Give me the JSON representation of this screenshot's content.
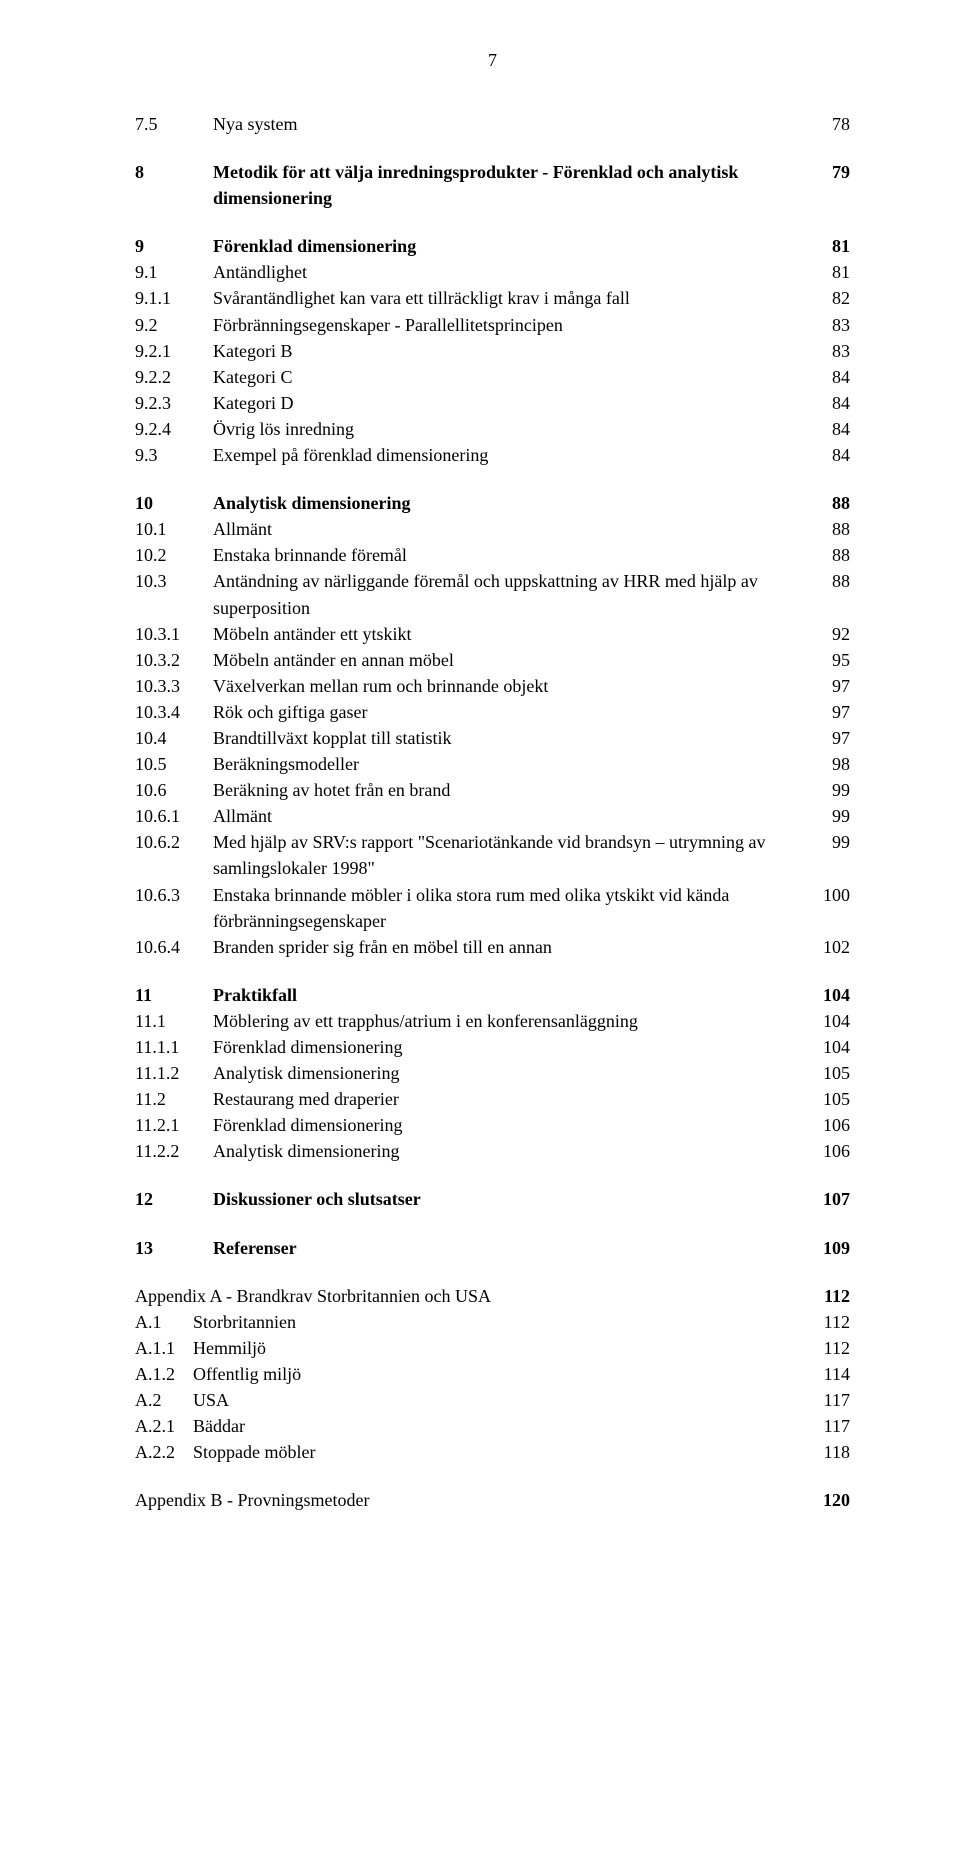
{
  "pageNumber": "7",
  "sections": [
    {
      "type": "entry",
      "bold": false,
      "rows": [
        {
          "num": "7.5",
          "title": "Nya system",
          "page": "78"
        }
      ]
    },
    {
      "type": "entry",
      "bold": true,
      "rows": [
        {
          "num": "8",
          "title": "Metodik för att välja inredningsprodukter - Förenklad och analytisk dimensionering",
          "page": "79"
        }
      ]
    },
    {
      "type": "entry",
      "bold": false,
      "rows": [
        {
          "num": "9",
          "title": "Förenklad dimensionering",
          "page": "81",
          "bold": true
        },
        {
          "num": "9.1",
          "title": "Antändlighet",
          "page": "81"
        },
        {
          "num": "9.1.1",
          "title": "Svårantändlighet kan vara ett tillräckligt krav i många fall",
          "page": "82"
        },
        {
          "num": "9.2",
          "title": "Förbränningsegenskaper - Parallellitetsprincipen",
          "page": "83"
        },
        {
          "num": "9.2.1",
          "title": "Kategori B",
          "page": "83"
        },
        {
          "num": "9.2.2",
          "title": "Kategori C",
          "page": "84"
        },
        {
          "num": "9.2.3",
          "title": "Kategori D",
          "page": "84"
        },
        {
          "num": "9.2.4",
          "title": "Övrig lös inredning",
          "page": "84"
        },
        {
          "num": "9.3",
          "title": "Exempel på förenklad dimensionering",
          "page": "84"
        }
      ]
    },
    {
      "type": "entry",
      "bold": false,
      "rows": [
        {
          "num": "10",
          "title": "Analytisk dimensionering",
          "page": "88",
          "bold": true
        },
        {
          "num": "10.1",
          "title": "Allmänt",
          "page": "88"
        },
        {
          "num": "10.2",
          "title": "Enstaka brinnande föremål",
          "page": "88"
        },
        {
          "num": "10.3",
          "title": "Antändning av närliggande föremål och uppskattning av HRR med hjälp av superposition",
          "page": "88"
        },
        {
          "num": "10.3.1",
          "title": "Möbeln antänder ett ytskikt",
          "page": "92"
        },
        {
          "num": "10.3.2",
          "title": "Möbeln antänder en annan möbel",
          "page": "95"
        },
        {
          "num": "10.3.3",
          "title": "Växelverkan mellan rum och brinnande objekt",
          "page": "97"
        },
        {
          "num": "10.3.4",
          "title": "Rök och giftiga gaser",
          "page": "97"
        },
        {
          "num": "10.4",
          "title": "Brandtillväxt kopplat till statistik",
          "page": "97"
        },
        {
          "num": "10.5",
          "title": "Beräkningsmodeller",
          "page": "98"
        },
        {
          "num": "10.6",
          "title": "Beräkning av hotet från en brand",
          "page": "99"
        },
        {
          "num": "10.6.1",
          "title": "Allmänt",
          "page": "99"
        },
        {
          "num": "10.6.2",
          "title": "Med hjälp av SRV:s rapport \"Scenariotänkande vid brandsyn – utrymning av samlingslokaler 1998\"",
          "page": "99"
        },
        {
          "num": "10.6.3",
          "title": "Enstaka brinnande möbler i olika stora rum med olika ytskikt vid kända förbränningsegenskaper",
          "page": "100"
        },
        {
          "num": "10.6.4",
          "title": "Branden sprider sig från en möbel till en annan",
          "page": "102"
        }
      ]
    },
    {
      "type": "entry",
      "bold": false,
      "rows": [
        {
          "num": "11",
          "title": "Praktikfall",
          "page": "104",
          "bold": true
        },
        {
          "num": "11.1",
          "title": "Möblering av ett trapphus/atrium i en konferensanläggning",
          "page": "104"
        },
        {
          "num": "11.1.1",
          "title": "Förenklad dimensionering",
          "page": "104"
        },
        {
          "num": "11.1.2",
          "title": "Analytisk dimensionering",
          "page": "105"
        },
        {
          "num": "11.2",
          "title": "Restaurang med draperier",
          "page": "105"
        },
        {
          "num": "11.2.1",
          "title": "Förenklad dimensionering",
          "page": "106"
        },
        {
          "num": "11.2.2",
          "title": "Analytisk dimensionering",
          "page": "106"
        }
      ]
    },
    {
      "type": "entry",
      "bold": true,
      "rows": [
        {
          "num": "12",
          "title": "Diskussioner och slutsatser",
          "page": "107"
        }
      ]
    },
    {
      "type": "entry",
      "bold": true,
      "rows": [
        {
          "num": "13",
          "title": "Referenser",
          "page": "109"
        }
      ]
    },
    {
      "type": "appendix",
      "rows": [
        {
          "num": "",
          "title": "Appendix A - Brandkrav Storbritannien och USA",
          "page": "112",
          "bold": true
        },
        {
          "num": "A.1",
          "title": "Storbritannien",
          "page": "112"
        },
        {
          "num": "A.1.1",
          "title": "Hemmiljö",
          "page": "112"
        },
        {
          "num": "A.1.2",
          "title": "Offentlig miljö",
          "page": "114"
        },
        {
          "num": "A.2",
          "title": "USA",
          "page": "117"
        },
        {
          "num": "A.2.1",
          "title": "Bäddar",
          "page": "117"
        },
        {
          "num": "A.2.2",
          "title": "Stoppade möbler",
          "page": "118"
        }
      ]
    },
    {
      "type": "appendix",
      "rows": [
        {
          "num": "",
          "title": "Appendix B - Provningsmetoder",
          "page": "120",
          "bold": true
        }
      ]
    }
  ]
}
